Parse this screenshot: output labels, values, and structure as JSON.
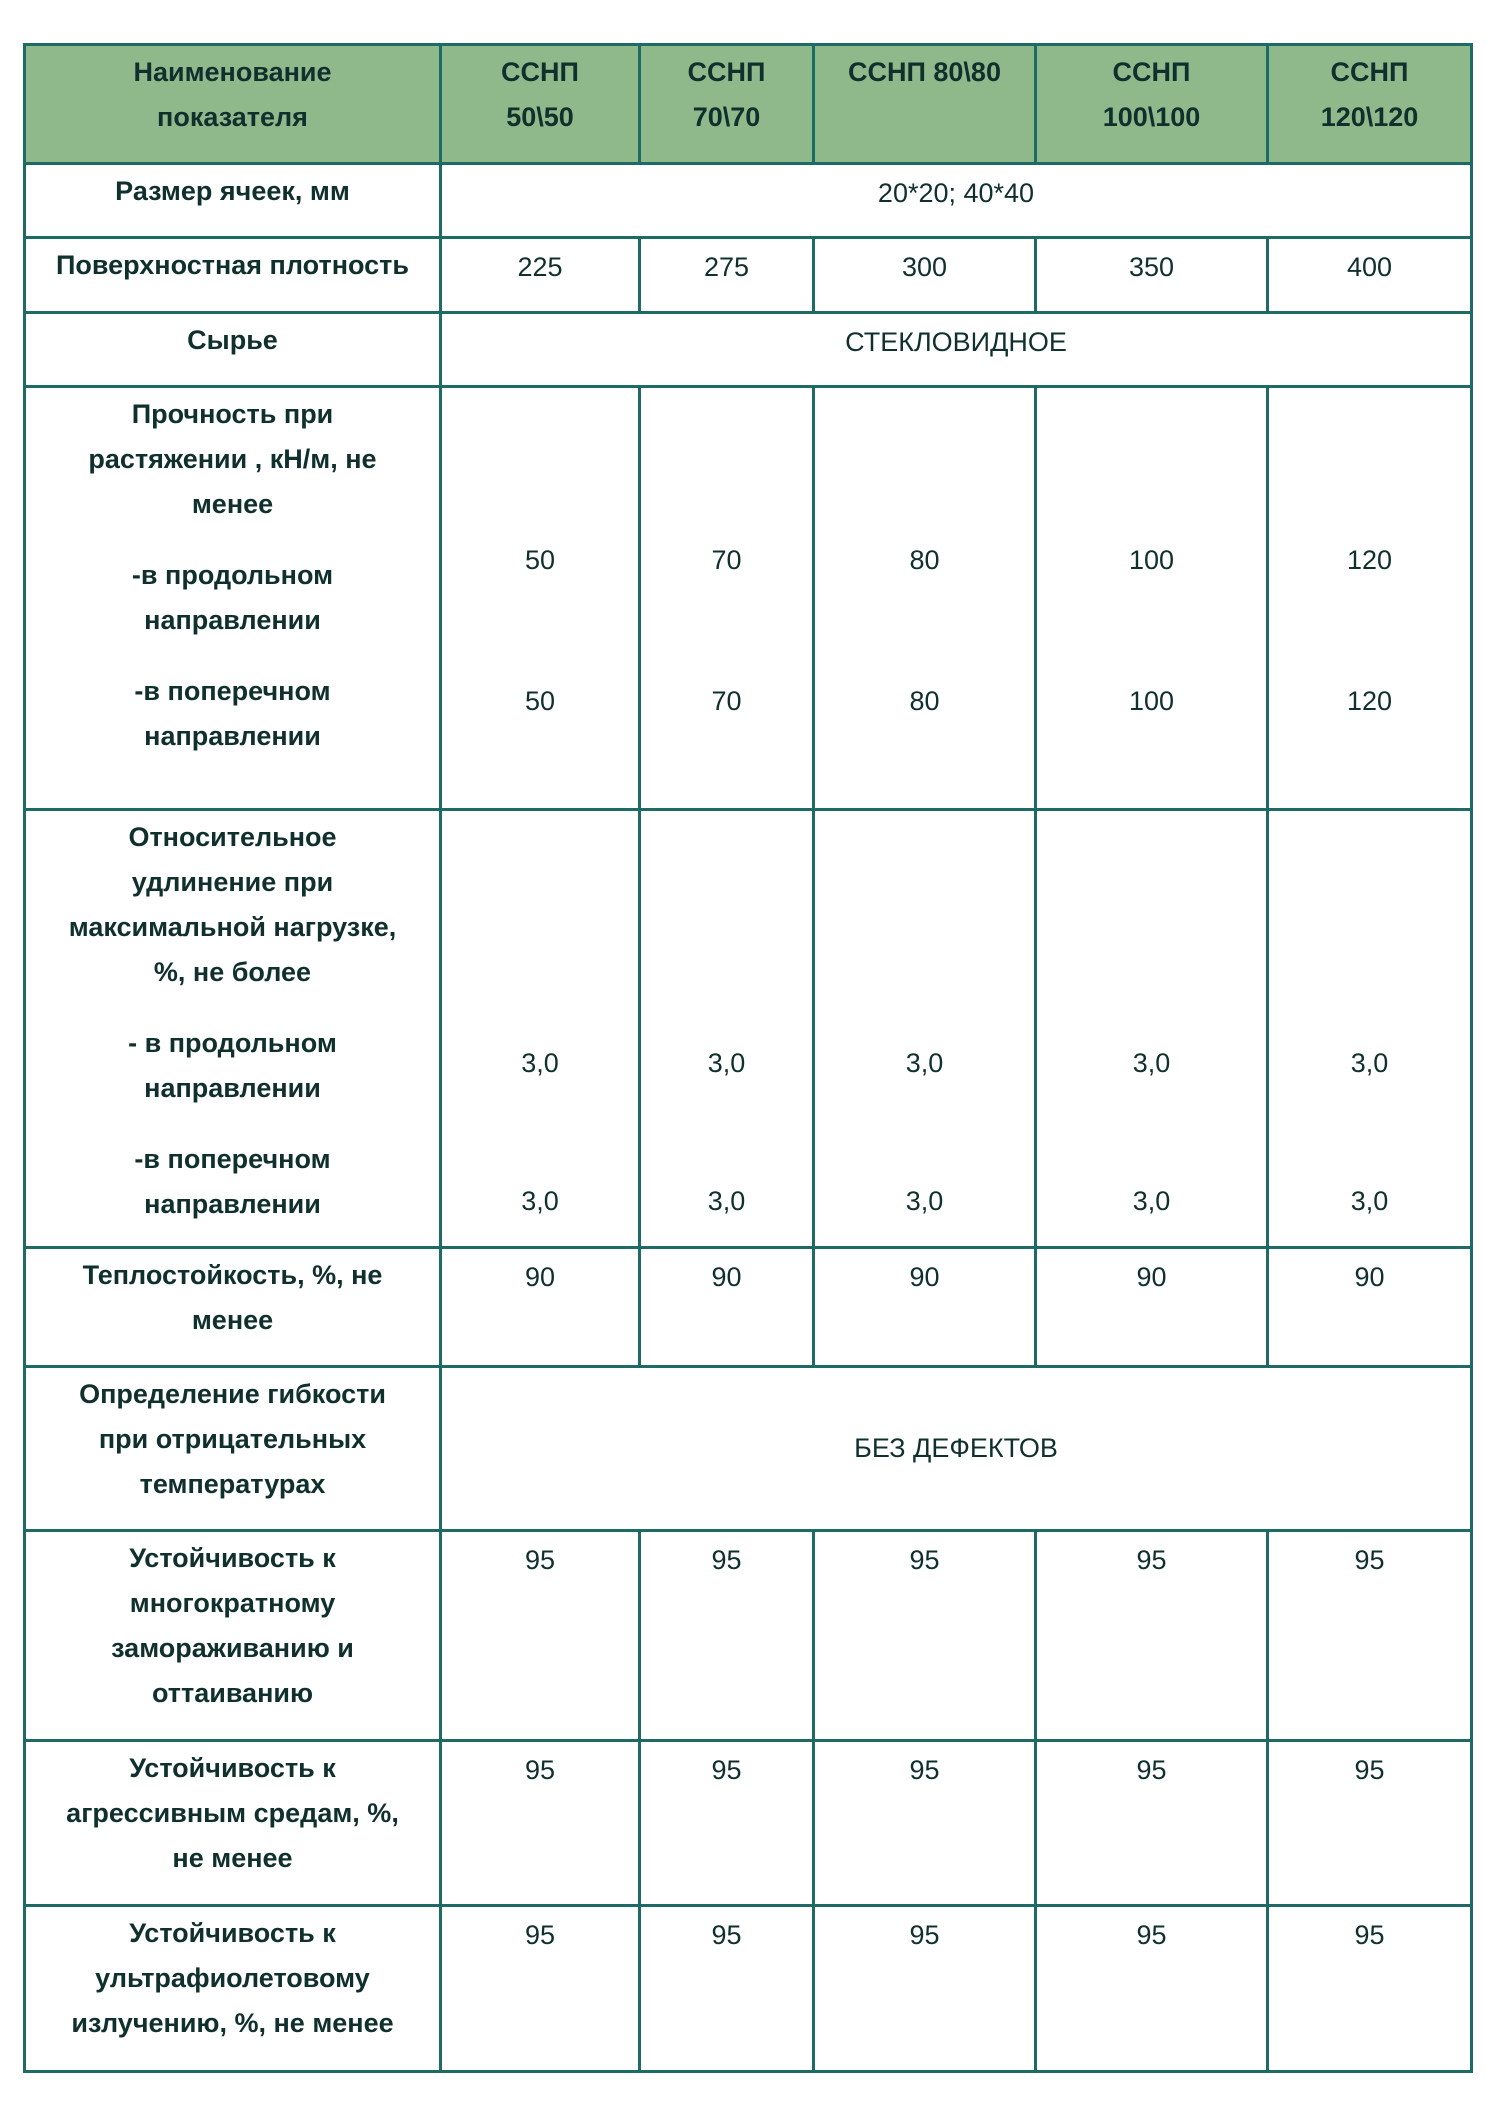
{
  "header": {
    "label_col": [
      "Наименование",
      "показателя"
    ],
    "columns": [
      [
        "ССНП",
        "50\\50"
      ],
      [
        "ССНП",
        "70\\70"
      ],
      [
        "ССНП 80\\80"
      ],
      [
        "ССНП",
        "100\\100"
      ],
      [
        "ССНП",
        "120\\120"
      ]
    ]
  },
  "rows": {
    "mesh": {
      "label": "Размер ячеек, мм",
      "value": "20*20; 40*40"
    },
    "density": {
      "label": "Поверхностная плотность",
      "values": [
        "225",
        "275",
        "300",
        "350",
        "400"
      ]
    },
    "material": {
      "label": "Сырье",
      "value": "СТЕКЛОВИДНОЕ"
    },
    "strength": {
      "label": [
        "Прочность при",
        "растяжении , кН/м, не",
        "менее"
      ],
      "sub1": [
        "-в продольном",
        "направлении"
      ],
      "sub2": [
        "-в поперечном",
        "направлении"
      ],
      "longitudinal": [
        "50",
        "70",
        "80",
        "100",
        "120"
      ],
      "transverse": [
        "50",
        "70",
        "80",
        "100",
        "120"
      ]
    },
    "elongation": {
      "label": [
        "Относительное",
        "удлинение при",
        "максимальной нагрузке,",
        "%, не более"
      ],
      "sub1": [
        "- в продольном",
        "направлении"
      ],
      "sub2": [
        "-в поперечном",
        "направлении"
      ],
      "longitudinal": [
        "3,0",
        "3,0",
        "3,0",
        "3,0",
        "3,0"
      ],
      "transverse": [
        "3,0",
        "3,0",
        "3,0",
        "3,0",
        "3,0"
      ]
    },
    "heat": {
      "label": [
        "Теплостойкость, %, не",
        "менее"
      ],
      "values": [
        "90",
        "90",
        "90",
        "90",
        "90"
      ]
    },
    "flex": {
      "label": [
        "Определение гибкости",
        "при отрицательных",
        "температурах"
      ],
      "value": "БЕЗ ДЕФЕКТОВ"
    },
    "freeze": {
      "label": [
        "Устойчивость к",
        "многократному",
        "замораживанию и",
        "оттаиванию"
      ],
      "values": [
        "95",
        "95",
        "95",
        "95",
        "95"
      ]
    },
    "aggressive": {
      "label": [
        "Устойчивость к",
        "агрессивным средам, %,",
        "не менее"
      ],
      "values": [
        "95",
        "95",
        "95",
        "95",
        "95"
      ]
    },
    "uv": {
      "label": [
        "Устойчивость к",
        "ультрафиолетовому",
        "излучению, %, не менее"
      ],
      "values": [
        "95",
        "95",
        "95",
        "95",
        "95"
      ]
    }
  },
  "colors": {
    "header_bg": "#8fb98a",
    "border": "#1d6b64",
    "text": "#10302d"
  }
}
